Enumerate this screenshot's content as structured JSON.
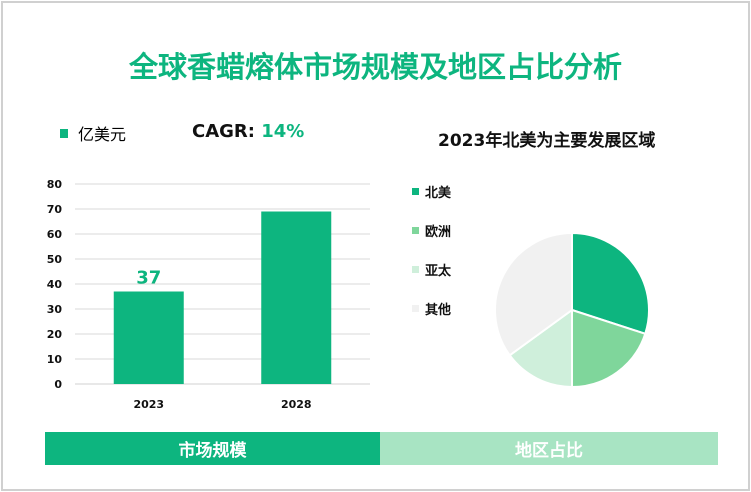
{
  "title": "全球香蜡熔体市场规模及地区占比分析",
  "bar_legend": "亿美元",
  "cagr_label": "CAGR: ",
  "cagr_value": "14%",
  "pie_title": "2023年北美为主要发展区域",
  "bands": [
    "市场规模",
    "地区占比"
  ],
  "colors": {
    "primary": "#0db57f",
    "band_right": "#a8e4c3"
  },
  "chart_data": [
    {
      "type": "bar",
      "categories": [
        "2023",
        "2028"
      ],
      "values": [
        37,
        69
      ],
      "data_labels": [
        "37",
        ""
      ],
      "ylim": [
        0,
        80
      ],
      "yticks": [
        "0",
        "10",
        "20",
        "30",
        "40",
        "50",
        "60",
        "70",
        "80"
      ],
      "grid": true,
      "legend": "亿美元",
      "color": "#0db57f"
    },
    {
      "type": "pie",
      "title": "2023年北美为主要发展区域",
      "labels": [
        "北美",
        "欧洲",
        "亚太",
        "其他"
      ],
      "values": [
        30,
        20,
        15,
        35
      ],
      "colors": [
        "#0db57f",
        "#7fd69b",
        "#cfefdb",
        "#f1f1f1"
      ],
      "legend": "left"
    }
  ]
}
